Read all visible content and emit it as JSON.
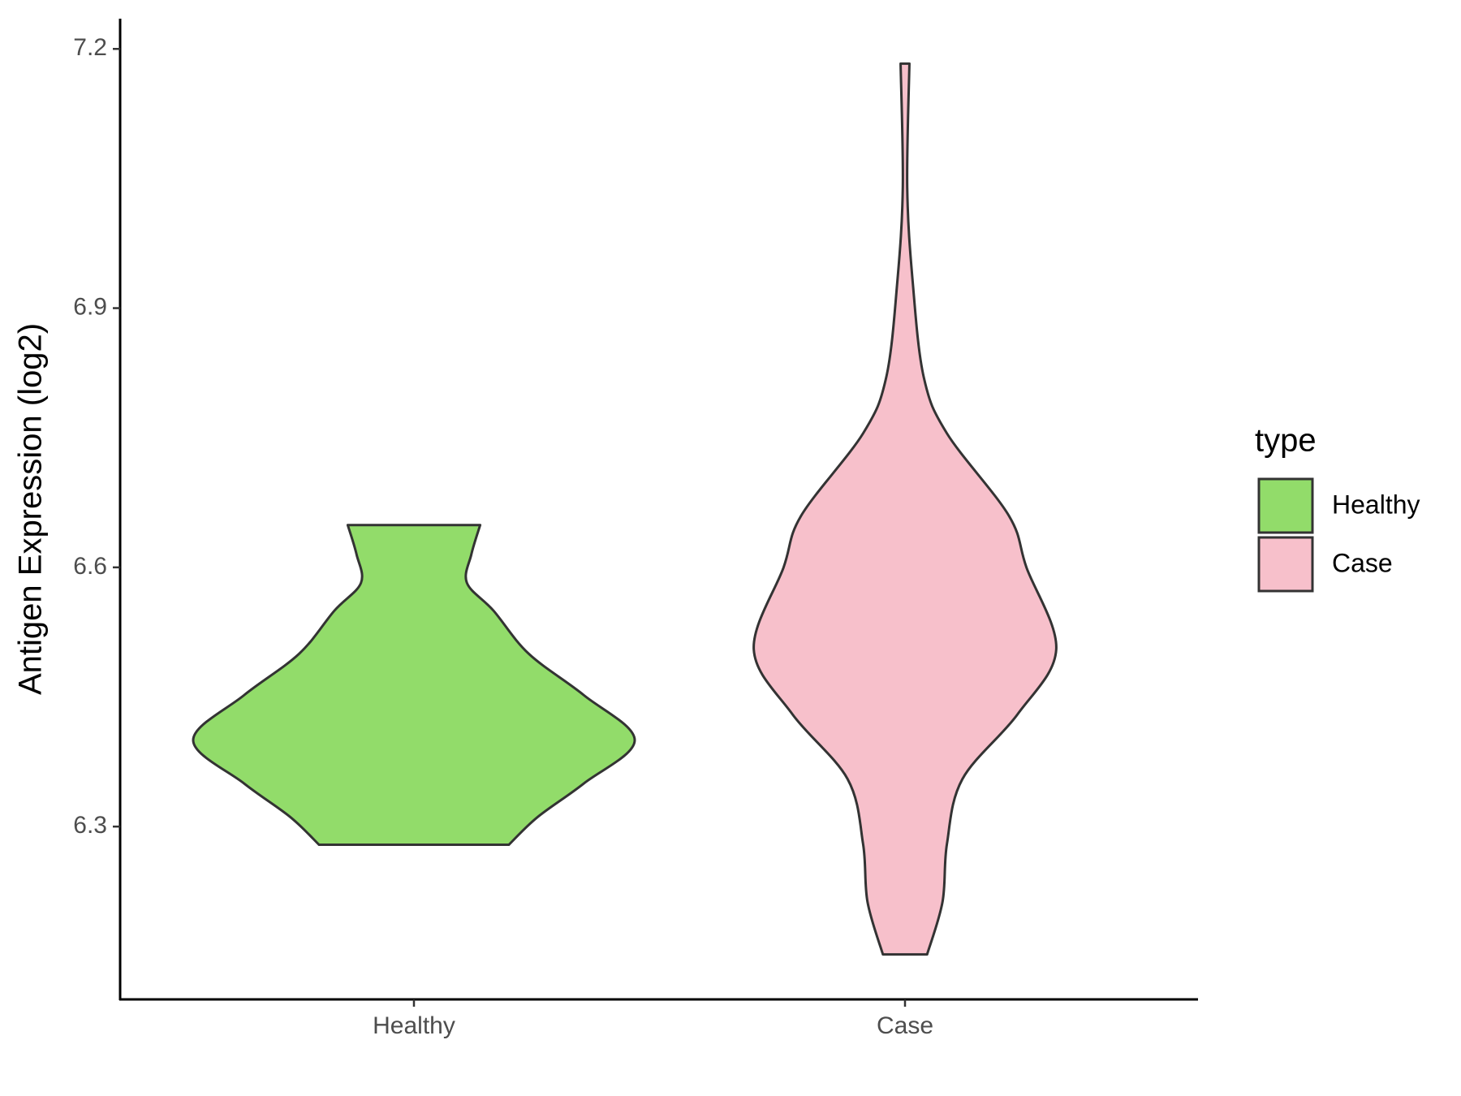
{
  "chart_data": {
    "type": "violin",
    "y_label": "Antigen Expression (log2)",
    "categories": [
      "Healthy",
      "Case"
    ],
    "legend_title": "type",
    "legend": "right",
    "ylim": [
      6.1,
      7.235
    ],
    "yticks": [
      6.3,
      6.6,
      6.9,
      7.2
    ],
    "series": [
      {
        "name": "Healthy",
        "color": "#92dc6a",
        "y": [
          6.279,
          6.311,
          6.35,
          6.4,
          6.452,
          6.5,
          6.55,
          6.582,
          6.615,
          6.649
        ],
        "density": [
          0.43,
          0.56,
          0.77,
          1.0,
          0.77,
          0.52,
          0.36,
          0.24,
          0.26,
          0.3
        ]
      },
      {
        "name": "Case",
        "color": "#f7c0cb",
        "y": [
          6.152,
          6.213,
          6.28,
          6.355,
          6.43,
          6.505,
          6.6,
          6.66,
          6.755,
          6.82,
          6.93,
          7.04,
          7.183
        ],
        "density": [
          0.1,
          0.17,
          0.19,
          0.26,
          0.51,
          0.685,
          0.55,
          0.47,
          0.19,
          0.085,
          0.035,
          0.01,
          0.02
        ]
      }
    ]
  }
}
